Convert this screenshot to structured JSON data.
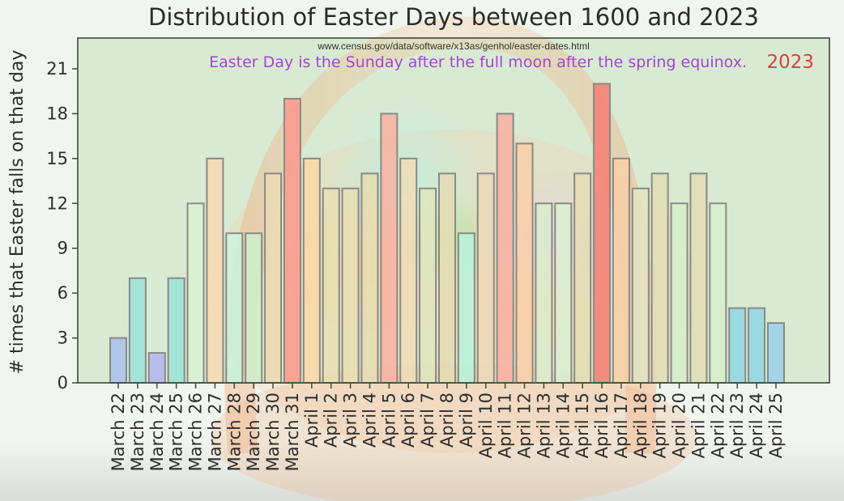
{
  "chart_data": {
    "type": "bar",
    "title": "Distribution of Easter Days between 1600 and 2023",
    "xlabel": "",
    "ylabel": "# times that Easter falls on that day",
    "ylim": [
      0,
      23
    ],
    "yticks": [
      0,
      3,
      6,
      9,
      12,
      15,
      18,
      21
    ],
    "grid": false,
    "legend": null,
    "annotations": {
      "source": "www.census.gov/data/software/x13as/genhol/easter-dates.html",
      "note": "Easter Day is the Sunday after the full moon after the spring equinox.",
      "year": "2023"
    },
    "categories": [
      "March 22",
      "March 23",
      "March 24",
      "March 25",
      "March 26",
      "March 27",
      "March 28",
      "March 29",
      "March 30",
      "March 31",
      "April 1",
      "April 2",
      "April 3",
      "April 4",
      "April 5",
      "April 6",
      "April 7",
      "April 8",
      "April 9",
      "April 10",
      "April 11",
      "April 12",
      "April 13",
      "April 14",
      "April 15",
      "April 16",
      "April 17",
      "April 18",
      "April 19",
      "April 20",
      "April 21",
      "April 22",
      "April 23",
      "April 24",
      "April 25"
    ],
    "values": [
      3,
      7,
      2,
      7,
      12,
      15,
      10,
      10,
      14,
      19,
      15,
      13,
      13,
      14,
      18,
      15,
      13,
      14,
      10,
      14,
      18,
      16,
      12,
      12,
      14,
      20,
      15,
      13,
      14,
      12,
      14,
      12,
      5,
      5,
      4
    ],
    "bar_colors": [
      "#a8c0ea",
      "#9ce2d8",
      "#b3b5ee",
      "#9ce2d8",
      "#d8f0d0",
      "#f6d9b4",
      "#c9f2dc",
      "#cfeec9",
      "#ead9b0",
      "#f99b8c",
      "#f8d8a8",
      "#e6dfb2",
      "#e7dfb4",
      "#e6dcb0",
      "#f7b3a0",
      "#eedcb6",
      "#dfe6bf",
      "#e4dcb4",
      "#b7f2dc",
      "#ecd8b8",
      "#f6b0a0",
      "#f8cfa8",
      "#dceccd",
      "#d9efcf",
      "#e4ddb5",
      "#f57f73",
      "#f7cfa6",
      "#e2e4c2",
      "#e0ddb6",
      "#d6eecc",
      "#e0ddb6",
      "#d6eecc",
      "#8fd6e0",
      "#8fd6e0",
      "#9ccfea"
    ]
  },
  "colors": {
    "plot_bg": "#d9ead3",
    "bar_edge": "#8a8a86",
    "axis": "#3a4a3a",
    "annotation": "#a445d6",
    "year": "#e0403c"
  }
}
